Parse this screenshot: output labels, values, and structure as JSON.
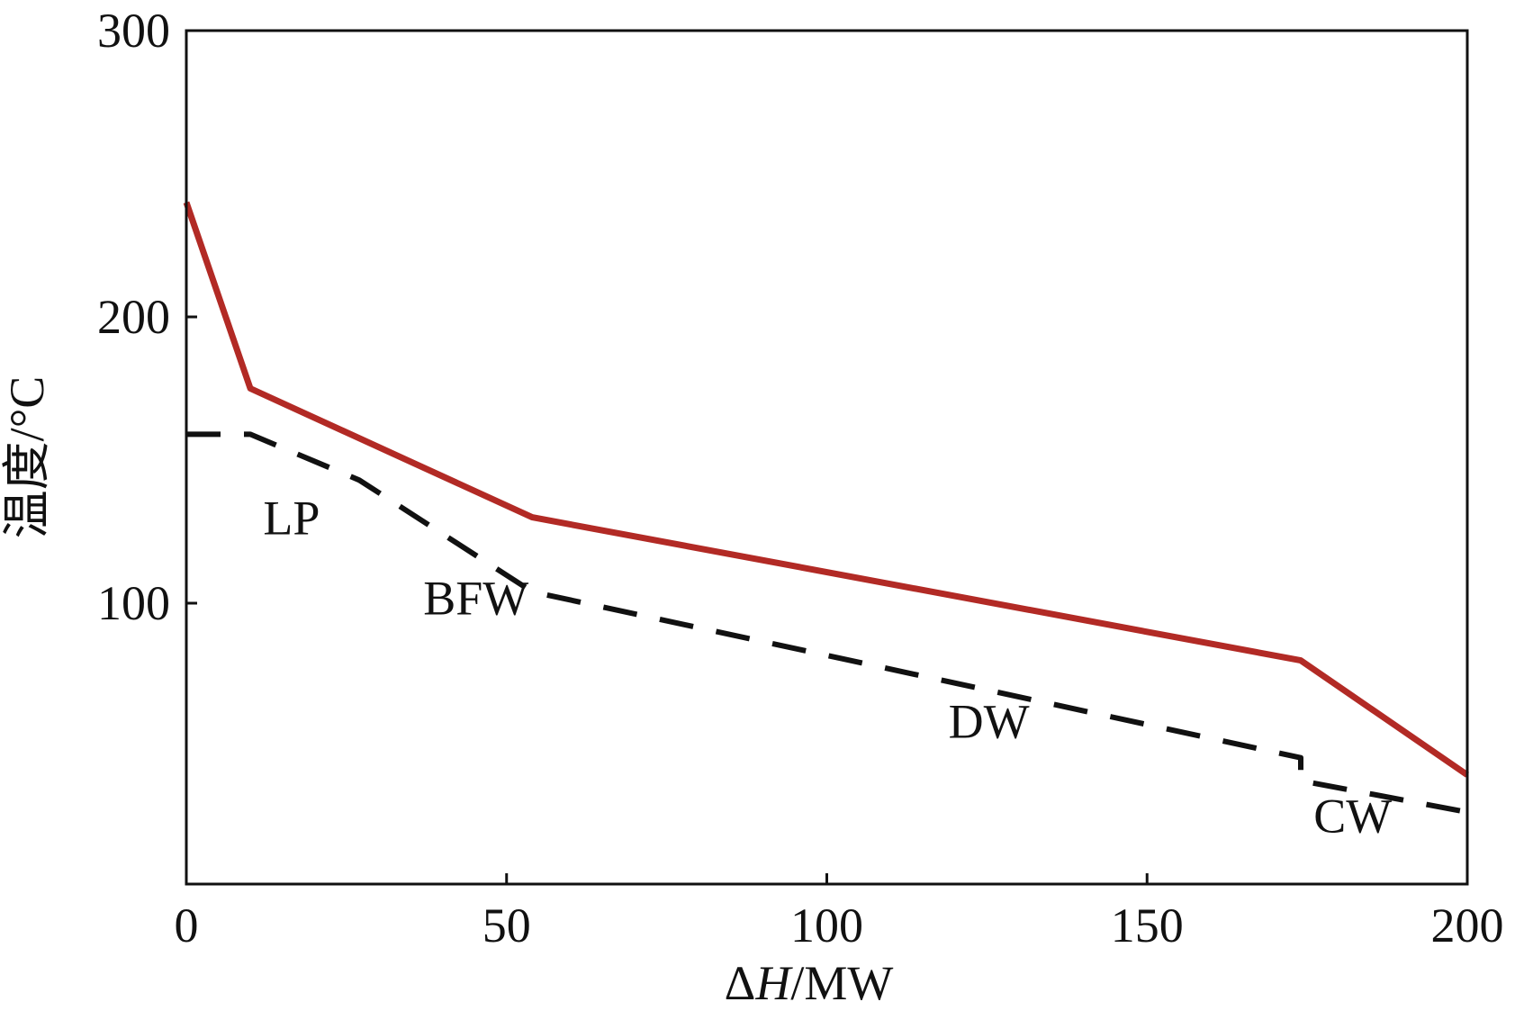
{
  "chart_data": {
    "type": "line",
    "xlabel": "ΔH/MW",
    "ylabel": "温度/°C",
    "xlim": [
      0,
      200
    ],
    "ylim": [
      0,
      300
    ],
    "x_ticks": [
      0,
      50,
      100,
      150,
      200
    ],
    "y_ticks": [
      100,
      200,
      300
    ],
    "x_tick_labels": [
      "0",
      "50",
      "100",
      "150",
      "200"
    ],
    "y_tick_labels": [
      "100",
      "200",
      "300"
    ],
    "grid": false,
    "legend": "none",
    "series": [
      {
        "style": "solid",
        "color": "#b22a25",
        "points": [
          [
            0,
            240
          ],
          [
            10,
            175
          ],
          [
            54,
            130
          ],
          [
            174,
            80
          ],
          [
            200,
            40
          ]
        ]
      },
      {
        "style": "dashed",
        "color": "#111111",
        "points": [
          [
            0,
            159
          ],
          [
            10,
            159
          ],
          [
            27,
            143
          ],
          [
            54,
            104
          ],
          [
            174,
            46
          ],
          [
            174,
            38
          ],
          [
            200,
            27
          ]
        ]
      }
    ],
    "annotations": [
      {
        "text": "LP",
        "x": 12,
        "y": 124
      },
      {
        "text": "BFW",
        "x": 37,
        "y": 96
      },
      {
        "text": "DW",
        "x": 119,
        "y": 53
      },
      {
        "text": "CW",
        "x": 176,
        "y": 20
      }
    ]
  }
}
